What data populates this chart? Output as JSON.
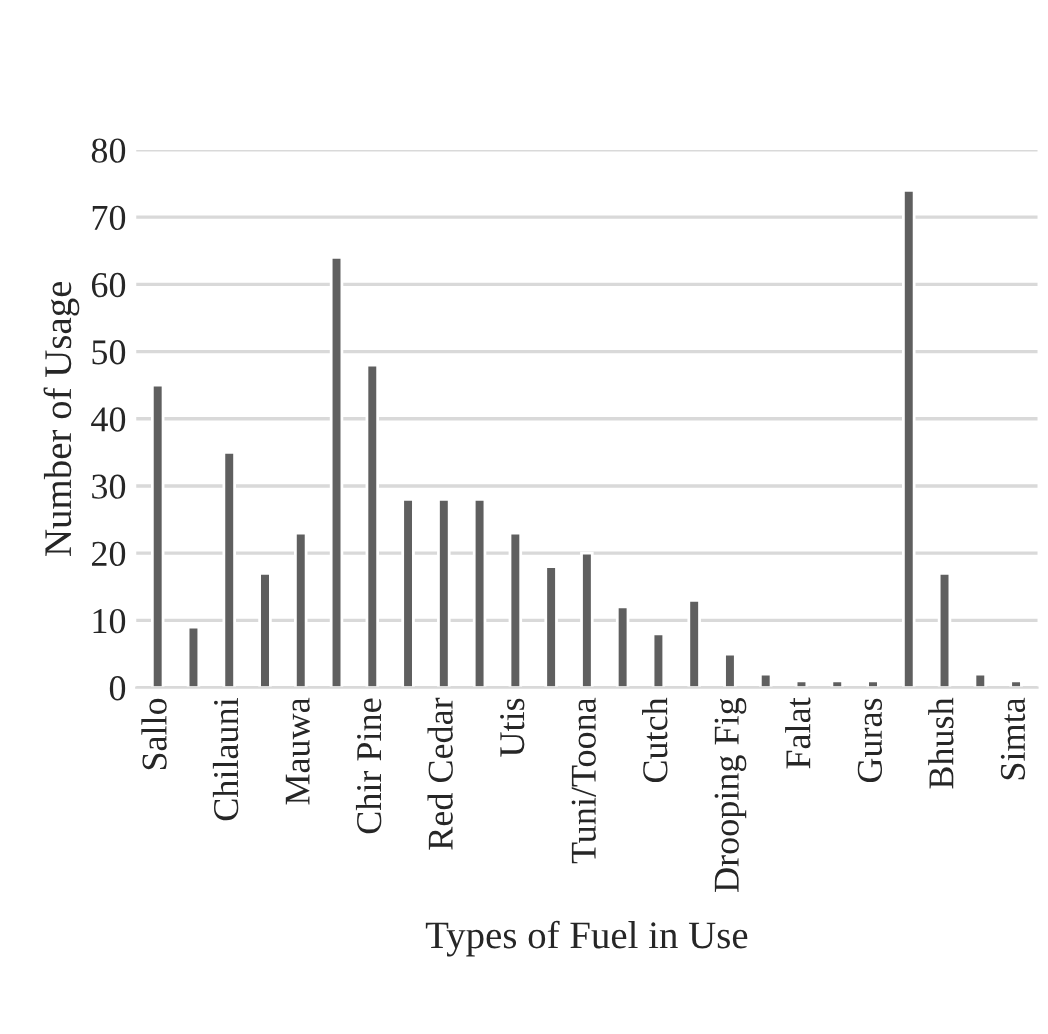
{
  "chart_data": {
    "type": "bar",
    "xlabel": "Types of Fuel in Use",
    "ylabel": "Number of Usage",
    "categories": [
      "Sallo",
      null,
      "Chilauni",
      null,
      "Mauwa",
      null,
      "Chir Pine",
      null,
      "Red Cedar",
      null,
      "Utis",
      null,
      "Tuni/Toona",
      null,
      "Cutch",
      null,
      "Drooping Fig",
      null,
      "Falat",
      null,
      "Guras",
      null,
      "Bhush",
      null,
      "Simta"
    ],
    "values": [
      45,
      9,
      35,
      17,
      23,
      64,
      48,
      28,
      28,
      28,
      23,
      18,
      20,
      12,
      8,
      13,
      5,
      2,
      1,
      1,
      1,
      74,
      17,
      2,
      1
    ],
    "color": "#5f5f5f",
    "ylim": [
      0,
      80
    ],
    "yticks": [
      0,
      10,
      20,
      30,
      40,
      50,
      60,
      70,
      80
    ],
    "grid": "y"
  }
}
